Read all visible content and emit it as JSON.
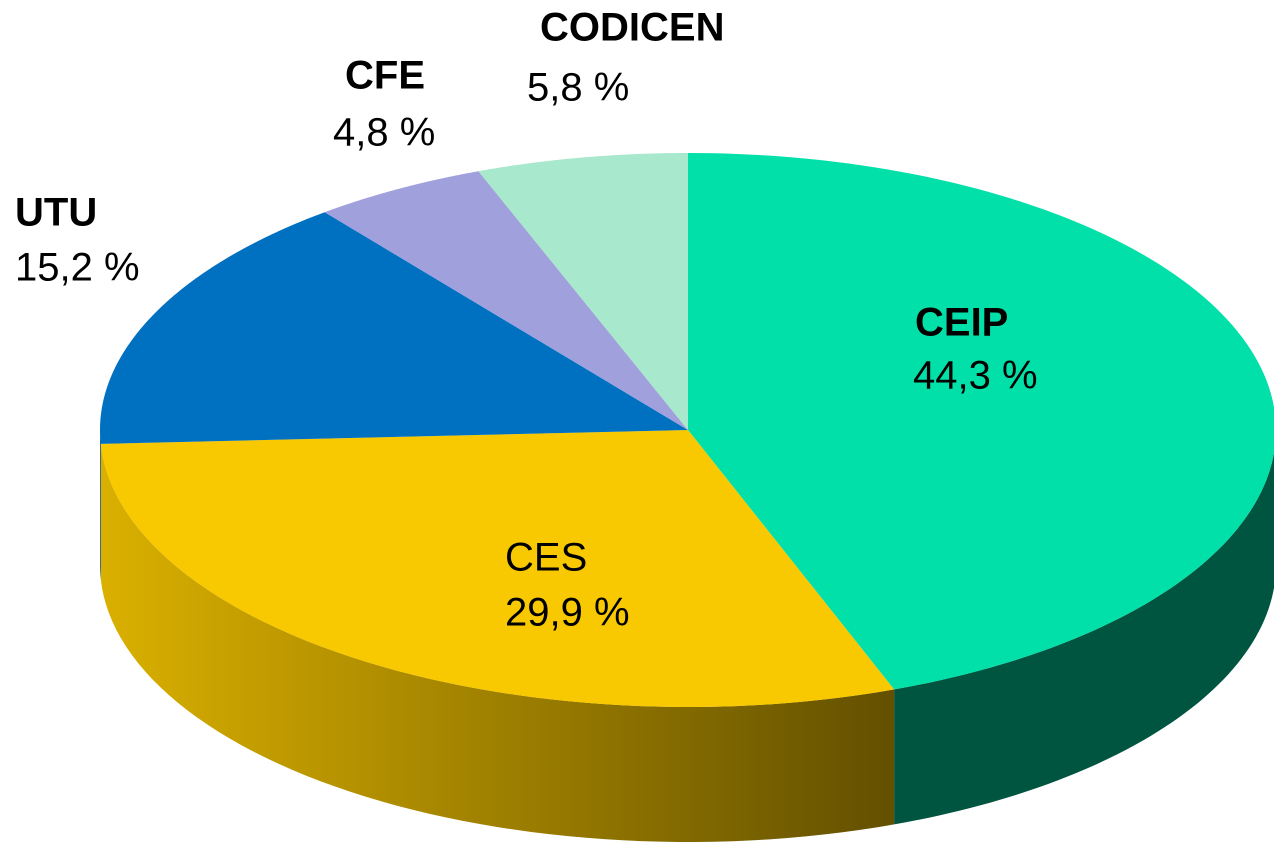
{
  "chart_data": {
    "type": "pie3d",
    "categories": [
      "CEIP",
      "CES",
      "UTU",
      "CFE",
      "CODICEN"
    ],
    "values": [
      44.3,
      29.9,
      15.2,
      4.8,
      5.8
    ],
    "value_labels": [
      "44,3 %",
      "29,9 %",
      "15,2 %",
      "4,8 %",
      "5,8 %"
    ],
    "colors": [
      "#00e0a8",
      "#f8c800",
      "#0070c0",
      "#a0a0dc",
      "#a8e8cc"
    ]
  }
}
